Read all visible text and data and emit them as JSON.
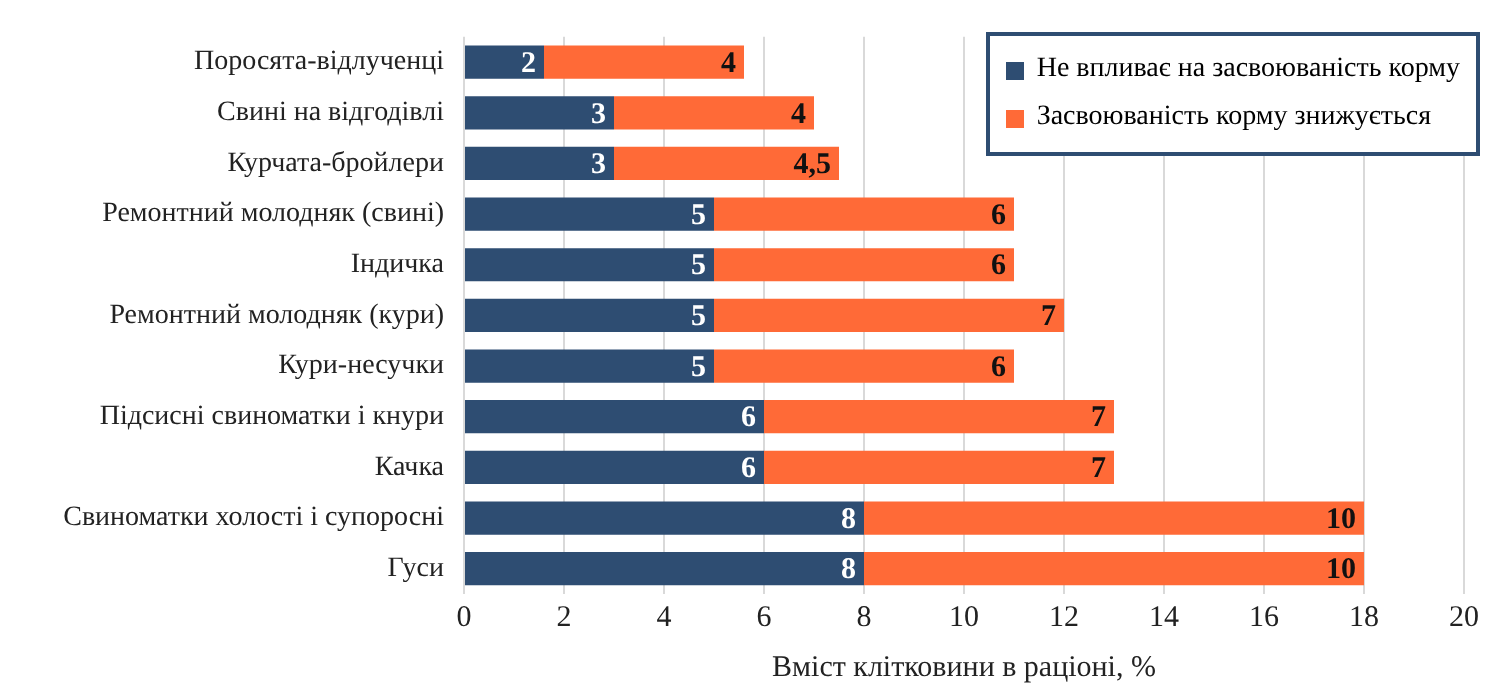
{
  "chart_data": {
    "type": "bar",
    "orientation": "horizontal",
    "stacked": true,
    "xlabel": "Вміст клітковини в раціоні, %",
    "categories": [
      "Поросята-відлученці",
      "Свині на відгодівлі",
      "Курчата-бройлери",
      "Ремонтний молодняк (свині)",
      "Індичка",
      "Ремонтний молодняк (кури)",
      "Кури-несучки",
      "Підсисні свиноматки і кнури",
      "Качка",
      "Свиноматки холості і супоросні",
      "Гуси"
    ],
    "series": [
      {
        "name": "Не впливає на засвоюваність корму",
        "color": "#2e4d72",
        "values": [
          1.6,
          3,
          3,
          5,
          5,
          5,
          5,
          6,
          6,
          8,
          8
        ],
        "value_labels": [
          "2",
          "3",
          "3",
          "5",
          "5",
          "5",
          "5",
          "6",
          "6",
          "8",
          "8"
        ]
      },
      {
        "name": "Засвоюваність корму знижується",
        "color": "#ff6a37",
        "values": [
          4,
          4,
          4.5,
          6,
          6,
          7,
          6,
          7,
          7,
          10,
          10
        ],
        "value_labels": [
          "4",
          "4",
          "4,5",
          "6",
          "6",
          "7",
          "6",
          "7",
          "7",
          "10",
          "10"
        ]
      }
    ],
    "xlim": [
      0,
      20
    ],
    "xticks": [
      0,
      2,
      4,
      6,
      8,
      10,
      12,
      14,
      16,
      18,
      20
    ],
    "grid": "x",
    "legend": "top right"
  }
}
